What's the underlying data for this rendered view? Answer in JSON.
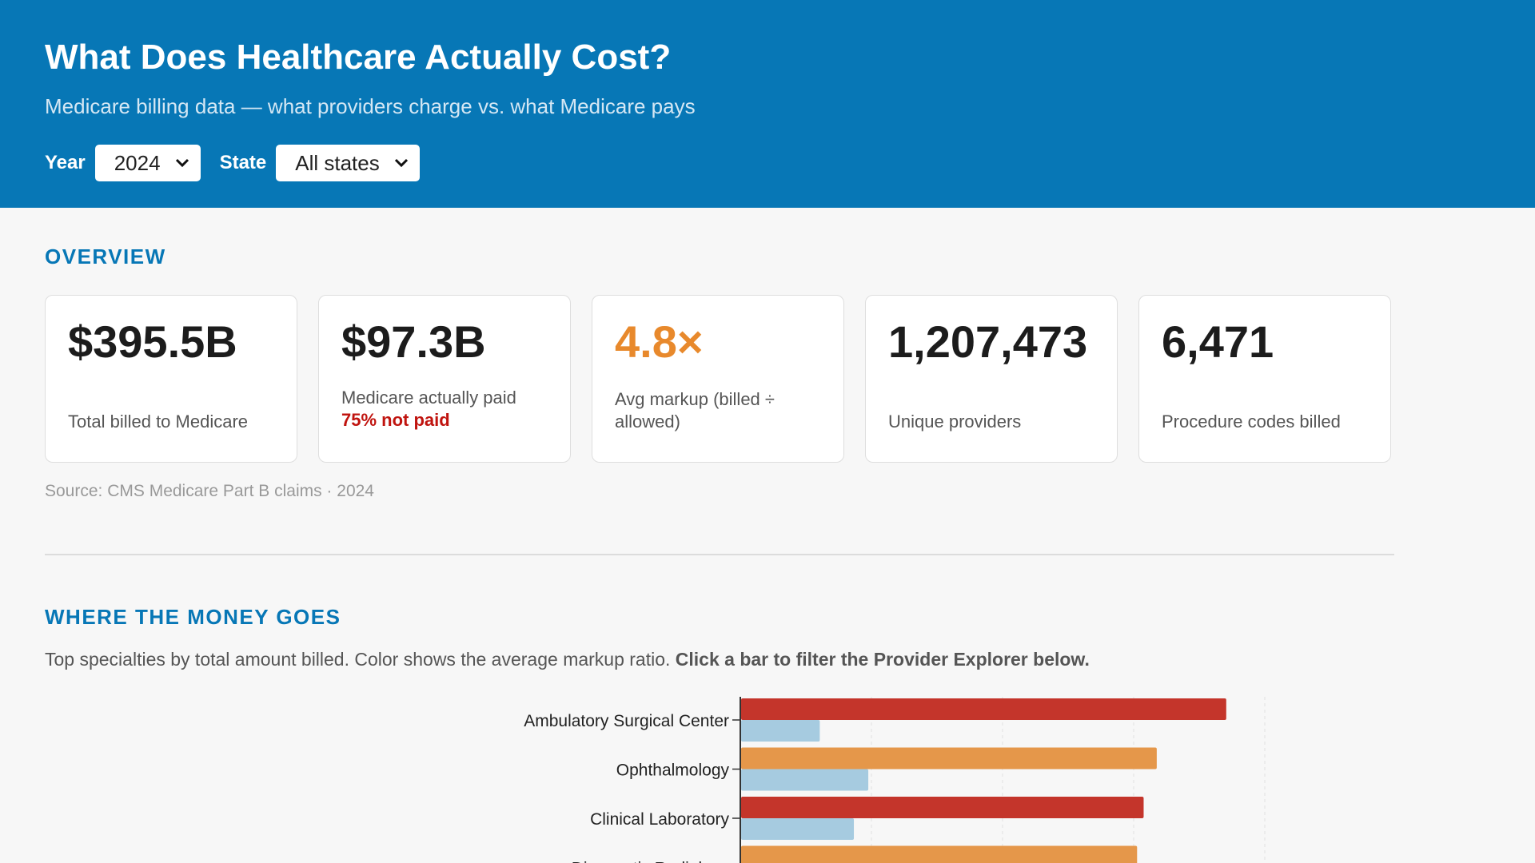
{
  "header": {
    "title": "What Does Healthcare Actually Cost?",
    "subtitle": "Medicare billing data — what providers charge vs. what Medicare pays",
    "year_label": "Year",
    "year_value": "2024",
    "state_label": "State",
    "state_value": "All states"
  },
  "overview": {
    "title": "OVERVIEW",
    "cards": [
      {
        "value": "$395.5B",
        "label": "Total billed to Medicare"
      },
      {
        "value": "$97.3B",
        "label": "Medicare actually paid",
        "note": "75% not paid"
      },
      {
        "value": "4.8×",
        "label": "Avg markup (billed ÷ allowed)"
      },
      {
        "value": "1,207,473",
        "label": "Unique providers"
      },
      {
        "value": "6,471",
        "label": "Procedure codes billed"
      }
    ],
    "source": "Source: CMS Medicare Part B claims · 2024"
  },
  "money": {
    "title": "WHERE THE MONEY GOES",
    "desc": "Top specialties by total amount billed. Color shows the average markup ratio. ",
    "desc_bold": "Click a bar to filter the Provider Explorer below."
  },
  "colors": {
    "accent": "#0777b6",
    "high_markup": "#c4352b",
    "mid_markup": "#e5974a",
    "paid": "#a6cbe0",
    "warn": "#c0140f"
  },
  "chart_data": {
    "type": "bar",
    "orientation": "horizontal",
    "categories": [
      "Ambulatory Surgical Center",
      "Ophthalmology",
      "Clinical Laboratory",
      "Diagnostic Radiology"
    ],
    "series": [
      {
        "values": [
          37,
          31.7,
          30.7,
          30.2
        ],
        "colors": [
          "#c4352b",
          "#e5974a",
          "#c4352b",
          "#e5974a"
        ]
      },
      {
        "values": [
          6.0,
          9.7,
          8.6,
          null
        ],
        "color": "#a6cbe0"
      }
    ],
    "xlim": [
      0,
      40
    ],
    "grid": true
  }
}
